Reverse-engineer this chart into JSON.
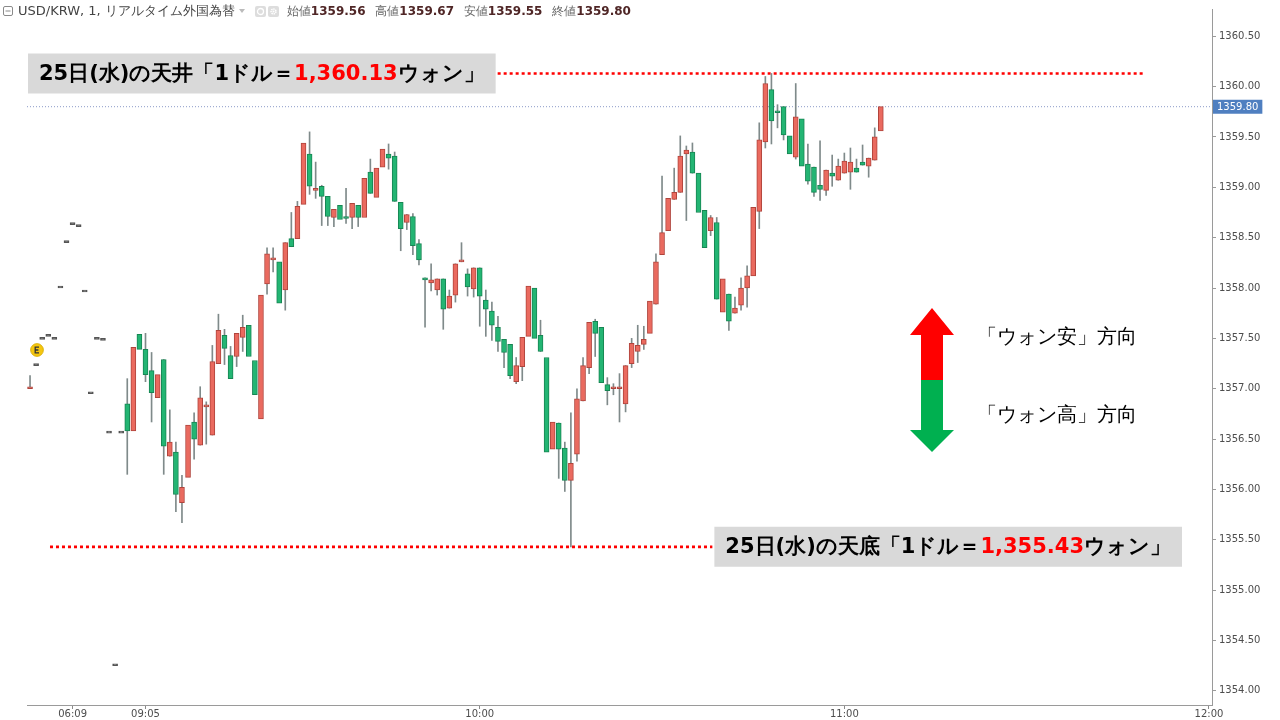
{
  "chart_data": {
    "type": "candlestick",
    "title": "USD/KRW, 1, リアルタイム外国為替",
    "subtitle": "始値1359.56 高値1359.67 安値1359.55 終値1359.80",
    "categories": [
      null,
      null,
      null,
      null,
      null,
      null,
      null,
      "06:09",
      null,
      null,
      null,
      null,
      null,
      null,
      null,
      null,
      null,
      null,
      null,
      "09:05",
      null,
      null,
      null,
      null,
      null,
      null,
      null,
      null,
      null,
      null,
      null,
      null,
      null,
      null,
      null,
      null,
      null,
      null,
      null,
      null,
      null,
      null,
      null,
      null,
      null,
      null,
      null,
      null,
      null,
      null,
      null,
      null,
      null,
      null,
      null,
      null,
      null,
      null,
      null,
      null,
      null,
      null,
      null,
      null,
      null,
      null,
      null,
      null,
      null,
      null,
      null,
      null,
      null,
      null,
      "10:00",
      null,
      null,
      null,
      null,
      null,
      null,
      null,
      null,
      null,
      null,
      null,
      null,
      null,
      null,
      null,
      null,
      null,
      null,
      null,
      null,
      null,
      null,
      null,
      null,
      null,
      null,
      null,
      null,
      null,
      null,
      null,
      null,
      null,
      null,
      null,
      null,
      null,
      null,
      null,
      null,
      null,
      null,
      null,
      null,
      null,
      null,
      null,
      null,
      null,
      null,
      null,
      null,
      null,
      null,
      null,
      null,
      null,
      null,
      null,
      "11:00",
      null,
      null,
      null,
      null,
      null,
      null,
      null,
      null,
      null,
      null,
      null,
      null,
      null,
      null,
      null,
      null,
      null,
      null,
      null,
      null,
      null,
      null,
      null,
      null,
      null,
      null,
      null,
      null,
      null,
      null,
      null,
      null,
      null,
      null,
      null,
      null,
      null,
      null,
      null,
      null,
      null,
      null,
      null,
      null,
      null,
      null,
      null,
      null,
      null,
      null,
      null,
      null,
      null,
      null,
      null,
      null,
      null,
      null,
      null,
      "12:00"
    ],
    "ohlc": [
      [
        1357.0,
        1357.13,
        1357.0,
        1357.0
      ],
      [
        1357.23,
        1357.23,
        1357.23,
        1357.23
      ],
      [
        1357.49,
        1357.49,
        1357.49,
        1357.49
      ],
      [
        1357.52,
        1357.52,
        1357.52,
        1357.52
      ],
      [
        1357.49,
        1357.49,
        1357.49,
        1357.49
      ],
      [
        1358.0,
        1358.0,
        1358.0,
        1358.0
      ],
      [
        1358.45,
        1358.45,
        1358.45,
        1358.45
      ],
      [
        1358.63,
        1358.63,
        1358.63,
        1358.63
      ],
      [
        1358.61,
        1358.61,
        1358.61,
        1358.61
      ],
      [
        1357.96,
        1357.96,
        1357.96,
        1357.96
      ],
      [
        1356.95,
        1356.95,
        1356.95,
        1356.95
      ],
      [
        1357.49,
        1357.49,
        1357.49,
        1357.49
      ],
      [
        1357.48,
        1357.48,
        1357.48,
        1357.48
      ],
      [
        1356.56,
        1356.56,
        1356.56,
        1356.56
      ],
      [
        1354.25,
        1354.25,
        1354.25,
        1354.25
      ],
      [
        1356.56,
        1356.56,
        1356.56,
        1356.56
      ],
      [
        1356.85,
        1357.1,
        1356.15,
        1356.58
      ],
      [
        1356.58,
        1357.41,
        1356.58,
        1357.41
      ],
      [
        1357.54,
        1357.54,
        1357.39,
        1357.39
      ],
      [
        1357.39,
        1357.55,
        1357.07,
        1357.14
      ],
      [
        1357.18,
        1357.36,
        1356.67,
        1356.96
      ],
      [
        1356.91,
        1357.14,
        1356.91,
        1357.14
      ],
      [
        1357.29,
        1357.29,
        1356.15,
        1356.43
      ],
      [
        1356.33,
        1356.79,
        1356.33,
        1356.47
      ],
      [
        1356.37,
        1356.47,
        1355.78,
        1355.95
      ],
      [
        1355.87,
        1356.14,
        1355.67,
        1356.02
      ],
      [
        1356.12,
        1356.64,
        1356.11,
        1356.64
      ],
      [
        1356.67,
        1356.76,
        1356.3,
        1356.5
      ],
      [
        1356.44,
        1357.02,
        1356.44,
        1356.91
      ],
      [
        1356.82,
        1356.87,
        1356.45,
        1356.84
      ],
      [
        1356.54,
        1357.43,
        1356.54,
        1357.27
      ],
      [
        1357.25,
        1357.74,
        1357.25,
        1357.58
      ],
      [
        1357.53,
        1357.59,
        1357.24,
        1357.4
      ],
      [
        1357.33,
        1357.42,
        1357.1,
        1357.1
      ],
      [
        1357.32,
        1357.55,
        1357.22,
        1357.55
      ],
      [
        1357.51,
        1357.73,
        1357.37,
        1357.61
      ],
      [
        1357.63,
        1357.65,
        1357.32,
        1357.32
      ],
      [
        1357.28,
        1357.28,
        1356.94,
        1356.94
      ],
      [
        1356.7,
        1357.93,
        1356.7,
        1357.93
      ],
      [
        1358.04,
        1358.4,
        1357.94,
        1358.34
      ],
      [
        1358.28,
        1358.4,
        1358.16,
        1358.28
      ],
      [
        1358.26,
        1358.26,
        1357.85,
        1357.85
      ],
      [
        1357.98,
        1358.45,
        1357.78,
        1358.45
      ],
      [
        1358.49,
        1358.75,
        1358.41,
        1358.41
      ],
      [
        1358.49,
        1358.86,
        1358.49,
        1358.81
      ],
      [
        1358.83,
        1359.44,
        1358.83,
        1359.44
      ],
      [
        1359.33,
        1359.55,
        1358.93,
        1359.01
      ],
      [
        1358.97,
        1359.25,
        1358.89,
        1358.97
      ],
      [
        1359.01,
        1359.02,
        1358.62,
        1358.91
      ],
      [
        1358.91,
        1358.91,
        1358.62,
        1358.71
      ],
      [
        1358.7,
        1358.78,
        1358.61,
        1358.78
      ],
      [
        1358.82,
        1358.82,
        1358.68,
        1358.68
      ],
      [
        1358.7,
        1358.99,
        1358.64,
        1358.69
      ],
      [
        1358.7,
        1358.84,
        1358.59,
        1358.84
      ],
      [
        1358.82,
        1358.82,
        1358.61,
        1358.7
      ],
      [
        1358.7,
        1359.09,
        1358.69,
        1359.09
      ],
      [
        1359.15,
        1359.28,
        1358.94,
        1358.94
      ],
      [
        1358.9,
        1359.19,
        1358.9,
        1359.19
      ],
      [
        1359.2,
        1359.38,
        1359.2,
        1359.38
      ],
      [
        1359.33,
        1359.43,
        1359.18,
        1359.29
      ],
      [
        1359.31,
        1359.35,
        1358.86,
        1358.86
      ],
      [
        1358.85,
        1358.85,
        1358.37,
        1358.59
      ],
      [
        1358.65,
        1358.73,
        1358.58,
        1358.73
      ],
      [
        1358.71,
        1358.74,
        1358.33,
        1358.42
      ],
      [
        1358.44,
        1358.48,
        1358.23,
        1358.28
      ],
      [
        1358.1,
        1358.1,
        1357.61,
        1358.08
      ],
      [
        1358.05,
        1358.24,
        1357.97,
        1358.08
      ],
      [
        1357.98,
        1358.09,
        1357.93,
        1358.09
      ],
      [
        1358.09,
        1358.09,
        1357.59,
        1357.79
      ],
      [
        1357.8,
        1357.98,
        1357.8,
        1357.92
      ],
      [
        1357.93,
        1358.24,
        1357.86,
        1358.24
      ],
      [
        1358.26,
        1358.45,
        1358.26,
        1358.26
      ],
      [
        1358.14,
        1358.19,
        1357.92,
        1358.01
      ],
      [
        1357.99,
        1358.2,
        1357.91,
        1358.2
      ],
      [
        1358.2,
        1358.2,
        1357.62,
        1357.92
      ],
      [
        1357.88,
        1357.98,
        1357.52,
        1357.79
      ],
      [
        1357.77,
        1357.86,
        1357.48,
        1357.63
      ],
      [
        1357.61,
        1357.72,
        1357.37,
        1357.47
      ],
      [
        1357.49,
        1357.49,
        1357.21,
        1357.36
      ],
      [
        1357.44,
        1357.44,
        1357.1,
        1357.13
      ],
      [
        1357.07,
        1357.31,
        1357.05,
        1357.23
      ],
      [
        1357.22,
        1357.51,
        1357.08,
        1357.51
      ],
      [
        1357.52,
        1358.02,
        1357.52,
        1358.02
      ],
      [
        1358.0,
        1358.0,
        1357.5,
        1357.5
      ],
      [
        1357.53,
        1357.68,
        1357.37,
        1357.37
      ],
      [
        1357.31,
        1357.31,
        1356.35,
        1356.37
      ],
      [
        1356.4,
        1356.67,
        1356.4,
        1356.67
      ],
      [
        1356.66,
        1356.66,
        1356.11,
        1356.4
      ],
      [
        1356.41,
        1356.47,
        1355.98,
        1356.09
      ],
      [
        1356.09,
        1356.76,
        1355.43,
        1356.26
      ],
      [
        1356.35,
        1357.0,
        1356.28,
        1356.9
      ],
      [
        1356.88,
        1357.31,
        1356.88,
        1357.23
      ],
      [
        1357.21,
        1357.66,
        1357.15,
        1357.66
      ],
      [
        1357.67,
        1357.69,
        1357.32,
        1357.55
      ],
      [
        1357.61,
        1357.61,
        1357.06,
        1357.06
      ],
      [
        1357.04,
        1357.11,
        1356.84,
        1356.98
      ],
      [
        1357.0,
        1357.05,
        1356.94,
        1357.0
      ],
      [
        1357.0,
        1357.15,
        1356.67,
        1357.0
      ],
      [
        1356.85,
        1357.23,
        1356.77,
        1357.23
      ],
      [
        1357.25,
        1357.5,
        1357.21,
        1357.45
      ],
      [
        1357.37,
        1357.63,
        1357.26,
        1357.43
      ],
      [
        1357.44,
        1357.62,
        1357.39,
        1357.49
      ],
      [
        1357.55,
        1357.87,
        1357.55,
        1357.87
      ],
      [
        1357.84,
        1358.34,
        1357.84,
        1358.26
      ],
      [
        1358.33,
        1359.11,
        1358.33,
        1358.55
      ],
      [
        1358.57,
        1358.89,
        1358.57,
        1358.89
      ],
      [
        1358.88,
        1359.19,
        1358.88,
        1358.95
      ],
      [
        1358.95,
        1359.51,
        1358.95,
        1359.31
      ],
      [
        1359.33,
        1359.41,
        1358.67,
        1359.37
      ],
      [
        1359.35,
        1359.44,
        1359.14,
        1359.14
      ],
      [
        1359.14,
        1359.14,
        1358.75,
        1358.75
      ],
      [
        1358.77,
        1358.77,
        1358.4,
        1358.4
      ],
      [
        1358.57,
        1358.72,
        1358.52,
        1358.7
      ],
      [
        1358.65,
        1358.7,
        1357.89,
        1357.89
      ],
      [
        1357.76,
        1358.09,
        1357.76,
        1358.09
      ],
      [
        1357.94,
        1357.94,
        1357.58,
        1357.67
      ],
      [
        1357.75,
        1357.91,
        1357.75,
        1357.8
      ],
      [
        1357.83,
        1358.1,
        1357.78,
        1358.0
      ],
      [
        1358.0,
        1358.22,
        1357.81,
        1358.12
      ],
      [
        1358.12,
        1358.8,
        1358.12,
        1358.8
      ],
      [
        1358.76,
        1359.64,
        1358.59,
        1359.47
      ],
      [
        1359.45,
        1360.1,
        1359.39,
        1360.03
      ],
      [
        1359.97,
        1360.13,
        1359.43,
        1359.66
      ],
      [
        1359.76,
        1359.82,
        1359.59,
        1359.74
      ],
      [
        1359.8,
        1359.8,
        1359.47,
        1359.52
      ],
      [
        1359.51,
        1359.51,
        1359.31,
        1359.33
      ],
      [
        1359.3,
        1360.03,
        1359.28,
        1359.7
      ],
      [
        1359.68,
        1359.68,
        1359.21,
        1359.21
      ],
      [
        1359.23,
        1359.43,
        1359.03,
        1359.06
      ],
      [
        1359.2,
        1359.2,
        1358.91,
        1358.95
      ],
      [
        1359.02,
        1359.46,
        1358.87,
        1358.98
      ],
      [
        1358.97,
        1359.17,
        1358.92,
        1359.17
      ],
      [
        1359.14,
        1359.32,
        1359.01,
        1359.11
      ],
      [
        1359.07,
        1359.28,
        1359.07,
        1359.21
      ],
      [
        1359.14,
        1359.34,
        1359.14,
        1359.26
      ],
      [
        1359.15,
        1359.39,
        1358.98,
        1359.25
      ],
      [
        1359.19,
        1359.28,
        1359.15,
        1359.15
      ],
      [
        1359.25,
        1359.42,
        1359.22,
        1359.22
      ],
      [
        1359.21,
        1359.29,
        1359.1,
        1359.29
      ],
      [
        1359.27,
        1359.59,
        1359.27,
        1359.5
      ],
      [
        1359.56,
        1359.8,
        1359.55,
        1359.8
      ],
      null,
      null,
      null,
      null,
      null,
      null,
      null,
      null,
      null,
      null,
      null,
      null,
      null,
      null,
      null,
      null,
      null,
      null,
      null,
      null,
      null,
      null,
      null,
      null,
      null,
      null,
      null,
      null,
      null,
      null,
      null,
      null,
      null,
      null,
      null,
      null,
      null,
      null,
      null,
      null,
      null,
      null,
      null,
      null,
      null,
      null,
      null,
      null,
      null,
      null,
      null,
      null,
      null,
      null
    ],
    "ylim": [
      1353.86,
      1360.77
    ],
    "yticks": [
      {
        "value": 1354,
        "label": "1354.00"
      },
      {
        "value": 1354.5,
        "label": "1354.50"
      },
      {
        "value": 1355,
        "label": "1355.00"
      },
      {
        "value": 1355.5,
        "label": "1355.50"
      },
      {
        "value": 1356,
        "label": "1356.00"
      },
      {
        "value": 1356.5,
        "label": "1356.50"
      },
      {
        "value": 1357,
        "label": "1357.00"
      },
      {
        "value": 1357.5,
        "label": "1357.50"
      },
      {
        "value": 1358,
        "label": "1358.00"
      },
      {
        "value": 1358.5,
        "label": "1358.50"
      },
      {
        "value": 1359,
        "label": "1359.00"
      },
      {
        "value": 1359.5,
        "label": "1359.50"
      },
      {
        "value": 1360,
        "label": "1360.00"
      },
      {
        "value": 1360.5,
        "label": "1360.50"
      }
    ],
    "ref_lines": [
      {
        "axis": "y",
        "value": 1360.13,
        "label": "25日(水)の天井「1ドル＝1,360.13ウォン」",
        "color": "#ff0000",
        "line_style": "dotted"
      },
      {
        "axis": "y",
        "value": 1355.43,
        "label": "25日(水)の天底「1ドル＝1,355.43ウォン」",
        "color": "#ff0000",
        "line_style": "dotted"
      },
      {
        "axis": "y",
        "value": 1359.8,
        "label": "1359.80",
        "color": "#8c9bc8",
        "line_style": "dotted"
      }
    ],
    "annotations": [
      "「ウォン安」方向",
      "「ウォン高」方向"
    ]
  }
}
